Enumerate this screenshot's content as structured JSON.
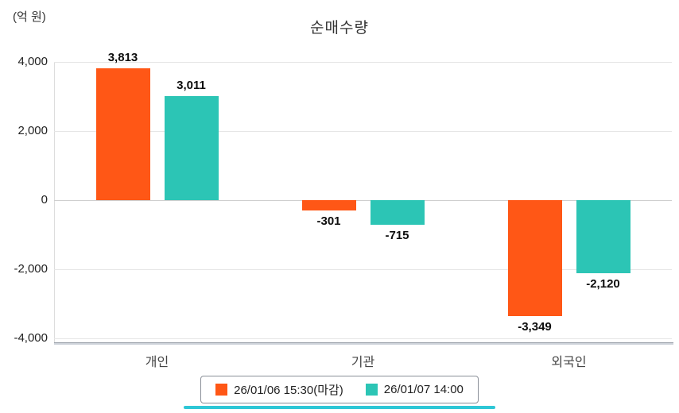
{
  "title": "순매수량",
  "unit_label": "(억 원)",
  "chart_data": {
    "type": "bar",
    "categories": [
      "개인",
      "기관",
      "외국인"
    ],
    "series": [
      {
        "name": "26/01/06 15:30(마감)",
        "color": "#ff5716",
        "values": [
          3813,
          -301,
          -3349
        ]
      },
      {
        "name": "26/01/07 14:00",
        "color": "#2cc5b5",
        "values": [
          3011,
          -715,
          -2120
        ]
      }
    ],
    "value_labels": [
      [
        "3,813",
        "-301",
        "-3,349"
      ],
      [
        "3,011",
        "-715",
        "-2,120"
      ]
    ],
    "ylim": [
      -4000,
      4000
    ],
    "yticks": [
      4000,
      2000,
      0,
      -2000,
      -4000
    ],
    "ytick_labels": [
      "4,000",
      "2,000",
      "0",
      "-2,000",
      "-4,000"
    ],
    "xlabel": "",
    "ylabel": "(억 원)",
    "grid": true,
    "legend_position": "bottom"
  }
}
